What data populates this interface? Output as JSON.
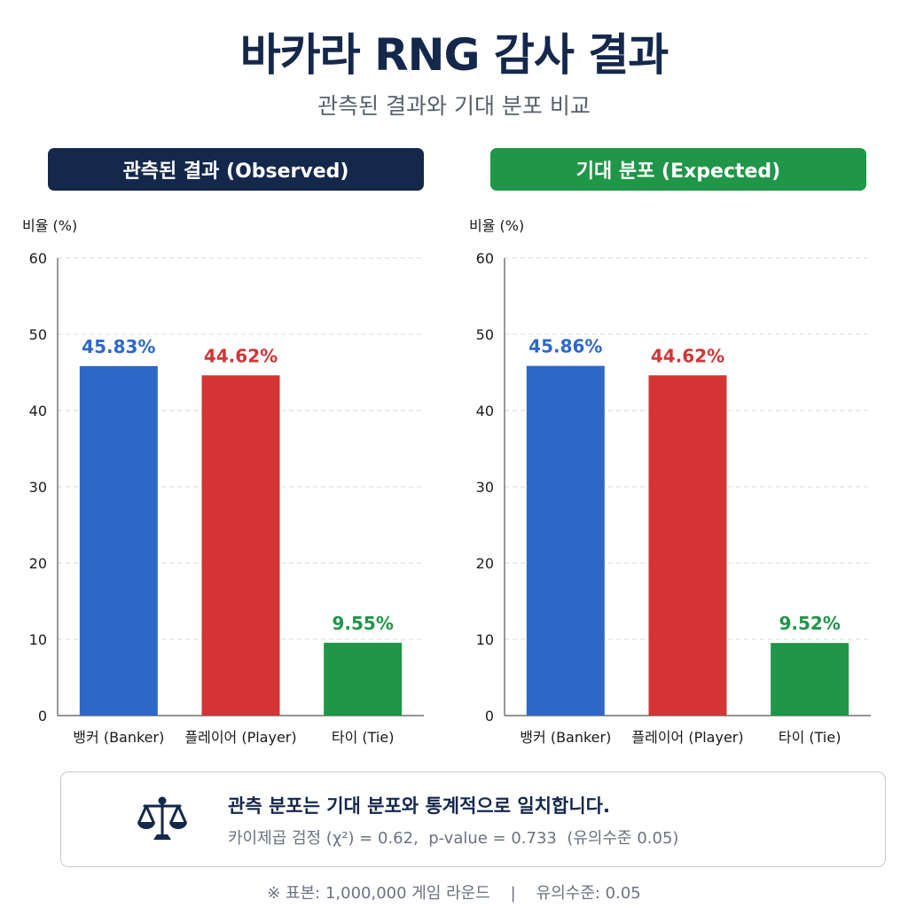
{
  "title": "바카라 RNG 감사 결과",
  "subtitle": "관측된 결과와 기대 분포 비교",
  "colors": {
    "header_observed": "#14284b",
    "header_expected": "#1f9648",
    "banker": "#2f67c6",
    "player": "#d43434",
    "tie": "#1f9648"
  },
  "panels": {
    "observed_header": "관측된 결과 (Observed)",
    "expected_header": "기대 분포 (Expected)"
  },
  "chart_data": [
    {
      "type": "bar",
      "categories": [
        "뱅커 (Banker)",
        "플레이어 (Player)",
        "타이 (Tie)"
      ],
      "values": [
        45.83,
        44.62,
        9.55
      ],
      "value_labels": [
        "45.83%",
        "44.62%",
        "9.55%"
      ],
      "title": "관측된 결과 (Observed)",
      "ylabel": "비율 (%)",
      "xlabel": "",
      "ylim": [
        0,
        60
      ],
      "yticks": [
        0,
        10,
        20,
        30,
        40,
        50,
        60
      ],
      "grid": true
    },
    {
      "type": "bar",
      "categories": [
        "뱅커 (Banker)",
        "플레이어 (Player)",
        "타이 (Tie)"
      ],
      "values": [
        45.86,
        44.62,
        9.52
      ],
      "value_labels": [
        "45.86%",
        "44.62%",
        "9.52%"
      ],
      "title": "기대 분포 (Expected)",
      "ylabel": "비율 (%)",
      "xlabel": "",
      "ylim": [
        0,
        60
      ],
      "yticks": [
        0,
        10,
        20,
        30,
        40,
        50,
        60
      ],
      "grid": true
    }
  ],
  "summary": {
    "icon": "balance-scale-icon",
    "main": "관측 분포는 기대 분포와 통계적으로 일치합니다.",
    "stats": "카이제곱 검정 (χ²) = 0.62,  p-value = 0.733  (유의수준 0.05)"
  },
  "footer": "※ 표본: 1,000,000 게임 라운드    |    유의수준: 0.05"
}
